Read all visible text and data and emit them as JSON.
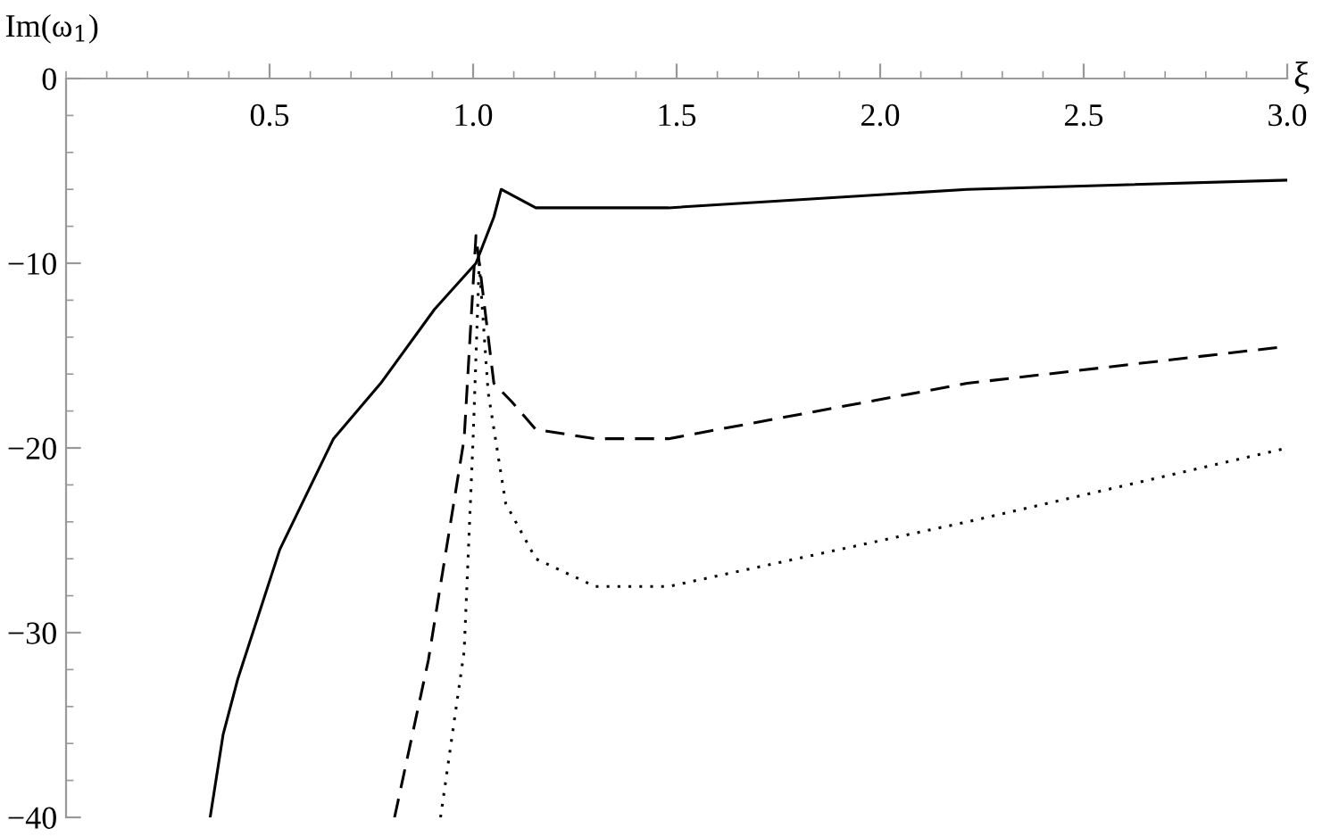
{
  "chart_data": {
    "type": "line",
    "xlabel": "ξ",
    "ylabel": "Im(ω$_{1}$)",
    "xlim": [
      0,
      3.0
    ],
    "ylim": [
      -40,
      0
    ],
    "xticks": [
      0.5,
      {
        "value": 1,
        "label": "1.0"
      },
      1.5,
      {
        "value": 2,
        "label": "2.0"
      },
      2.5,
      {
        "value": 3,
        "label": "3.0"
      }
    ],
    "yticks": [
      0,
      -10,
      -20,
      -30,
      -40
    ],
    "grid": false,
    "legend": false,
    "series": [
      {
        "color": "#000000",
        "line_style": "solid",
        "x": [
          0.354,
          0.386,
          0.422,
          0.525,
          0.657,
          0.773,
          0.905,
          1.007,
          1.051,
          1.069,
          1.154,
          1.3,
          1.48,
          2.214,
          3.0
        ],
        "values": [
          -40,
          -35.5,
          -32.5,
          -25.5,
          -19.5,
          -16.5,
          -12.5,
          -10,
          -7.5,
          -6,
          -7,
          -7,
          -7,
          -6,
          -5.5
        ]
      },
      {
        "color": "#000000",
        "line_style": "dashed",
        "x": [
          0.807,
          0.89,
          0.978,
          1.007,
          1.051,
          1.095,
          1.154,
          1.3,
          1.48,
          2.214,
          3.0
        ],
        "values": [
          -40,
          -31.5,
          -19.5,
          -8.5,
          -16.5,
          -17.5,
          -19,
          -19.5,
          -19.5,
          -16.5,
          -14.5
        ]
      },
      {
        "color": "#000000",
        "line_style": "dotted",
        "x": [
          0.92,
          0.978,
          1.0,
          1.015,
          1.037,
          1.08,
          1.154,
          1.3,
          1.48,
          2.214,
          3.0
        ],
        "values": [
          -40,
          -31,
          -19.5,
          -10,
          -17,
          -23,
          -26,
          -27.5,
          -27.5,
          -24,
          -20
        ]
      }
    ]
  }
}
